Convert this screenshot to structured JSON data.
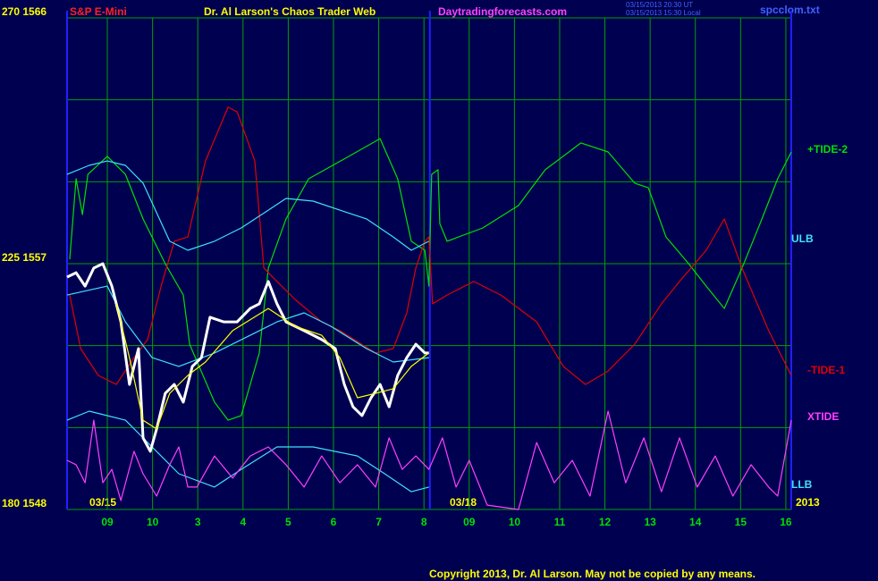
{
  "chart_data": {
    "type": "line",
    "instrument": "S&P E-Mini",
    "title": "Dr. Al Larson's Chaos Trader Web",
    "website": "Daytradingforecasts.com",
    "timestamps": [
      "03/15/2013 20:30 UT",
      "03/15/2013 15:30 Local"
    ],
    "file": "spcclom.txt",
    "copyright": "Copyright 2013, Dr. Al Larson. May not be copied by any means.",
    "date_labels": [
      "03/15",
      "03/18",
      "2013"
    ],
    "xlim": [
      0.11,
      16.12
    ],
    "xticks": [
      {
        "value": 1,
        "label": "09"
      },
      {
        "value": 2,
        "label": "10"
      },
      3,
      4,
      5,
      6,
      7,
      8,
      {
        "value": 9,
        "label": "09"
      },
      10,
      11,
      12,
      13,
      14,
      15,
      16
    ],
    "ylim": [
      1548,
      1566
    ],
    "yticks": [
      {
        "value": 1566,
        "label": "270 1566"
      },
      {
        "value": 1557,
        "label": "225 1557"
      },
      {
        "value": 1548,
        "label": "180 1548"
      }
    ],
    "ygrid": [
      1548,
      1551,
      1554,
      1557,
      1560,
      1563,
      1566
    ],
    "grid": true,
    "day_break": 8.13,
    "series": [
      {
        "name": "+TIDE-2",
        "color": "#00e000",
        "x": [
          0.17,
          0.31,
          0.45,
          0.57,
          1.0,
          1.4,
          1.79,
          2.28,
          2.68,
          2.82,
          3.37,
          3.67,
          3.96,
          4.36,
          4.56,
          4.95,
          5.45,
          6.34,
          7.03,
          7.42,
          7.72,
          8.02,
          8.11,
          8.17,
          8.31,
          8.35,
          8.51,
          9.3,
          10.09,
          10.68,
          11.47,
          12.07,
          12.66,
          12.96,
          13.35,
          13.85,
          14.24,
          14.64,
          15.03,
          15.43,
          15.82,
          16.12
        ],
        "values": [
          1557.16,
          1560.11,
          1558.8,
          1560.27,
          1560.93,
          1560.27,
          1558.64,
          1557.0,
          1555.85,
          1554.05,
          1551.93,
          1551.27,
          1551.44,
          1553.73,
          1556.84,
          1558.64,
          1560.11,
          1560.93,
          1561.58,
          1560.11,
          1557.82,
          1557.49,
          1556.18,
          1560.27,
          1560.44,
          1558.47,
          1557.82,
          1558.31,
          1559.13,
          1560.44,
          1561.42,
          1561.09,
          1559.95,
          1559.78,
          1557.98,
          1557.0,
          1556.18,
          1555.36,
          1556.84,
          1558.47,
          1560.11,
          1561.09
        ]
      },
      {
        "name": "-TIDE-1",
        "color": "#e00000",
        "x": [
          0.17,
          0.41,
          0.8,
          1.2,
          1.59,
          1.89,
          2.19,
          2.48,
          2.78,
          3.17,
          3.67,
          3.87,
          4.26,
          4.46,
          4.75,
          5.15,
          5.74,
          6.14,
          6.93,
          7.32,
          7.62,
          7.82,
          8.02,
          8.11,
          8.19,
          8.51,
          9.1,
          9.7,
          10.49,
          11.08,
          11.57,
          12.07,
          12.66,
          13.25,
          13.65,
          14.24,
          14.64,
          15.03,
          15.62,
          16.12
        ],
        "values": [
          1555.85,
          1553.89,
          1552.91,
          1552.58,
          1553.56,
          1554.22,
          1556.18,
          1557.82,
          1557.98,
          1560.76,
          1562.73,
          1562.56,
          1560.76,
          1556.84,
          1556.35,
          1555.69,
          1554.87,
          1554.55,
          1553.73,
          1553.89,
          1555.2,
          1556.84,
          1557.82,
          1557.98,
          1555.53,
          1555.85,
          1556.35,
          1555.85,
          1554.87,
          1553.24,
          1552.58,
          1553.07,
          1554.05,
          1555.53,
          1556.35,
          1557.49,
          1558.64,
          1556.84,
          1554.55,
          1552.91
        ]
      },
      {
        "name": "ULB",
        "color": "#40e0ff",
        "x": [
          0.11,
          0.6,
          1.0,
          1.4,
          1.79,
          2.38,
          2.78,
          3.37,
          3.96,
          4.56,
          4.95,
          5.55,
          6.14,
          6.73,
          7.32,
          7.72,
          8.11
        ],
        "values": [
          1560.27,
          1560.6,
          1560.76,
          1560.6,
          1559.95,
          1557.82,
          1557.49,
          1557.82,
          1558.31,
          1558.96,
          1559.39,
          1559.29,
          1558.96,
          1558.64,
          1557.98,
          1557.49,
          1557.82
        ]
      },
      {
        "color": "#40e0ff",
        "x": [
          0.11,
          1.0,
          1.4,
          1.99,
          2.58,
          3.37,
          4.16,
          4.75,
          5.35,
          5.94,
          6.73,
          7.32,
          8.11
        ],
        "values": [
          1555.85,
          1556.18,
          1554.87,
          1553.56,
          1553.24,
          1553.73,
          1554.38,
          1554.87,
          1555.2,
          1554.71,
          1553.89,
          1553.4,
          1553.56
        ]
      },
      {
        "name": "LLB",
        "color": "#40e0ff",
        "x": [
          0.11,
          0.6,
          1.4,
          1.99,
          2.58,
          3.37,
          3.96,
          4.75,
          5.55,
          6.53,
          7.13,
          7.72,
          8.11
        ],
        "values": [
          1551.27,
          1551.6,
          1551.27,
          1550.29,
          1549.31,
          1548.82,
          1549.47,
          1550.29,
          1550.29,
          1549.96,
          1549.31,
          1548.65,
          1548.82
        ]
      },
      {
        "name": "XTIDE",
        "color": "#ff40ff",
        "x": [
          0.11,
          0.31,
          0.51,
          0.7,
          0.9,
          1.1,
          1.3,
          1.59,
          1.79,
          2.09,
          2.38,
          2.58,
          2.78,
          2.98,
          3.37,
          3.77,
          4.16,
          4.56,
          4.95,
          5.35,
          5.74,
          6.14,
          6.53,
          6.93,
          7.23,
          7.52,
          7.82,
          8.11,
          8.41,
          8.71,
          9.0,
          9.4,
          10.09,
          10.49,
          10.88,
          11.28,
          11.67,
          12.07,
          12.46,
          12.86,
          13.25,
          13.65,
          14.04,
          14.44,
          14.83,
          15.23,
          15.62,
          15.82,
          16.12
        ],
        "values": [
          1549.8,
          1549.64,
          1548.98,
          1551.27,
          1548.98,
          1549.47,
          1548.33,
          1550.13,
          1549.31,
          1548.49,
          1549.64,
          1550.29,
          1548.82,
          1548.82,
          1549.96,
          1549.15,
          1549.96,
          1550.29,
          1549.64,
          1548.82,
          1549.96,
          1548.98,
          1549.64,
          1548.82,
          1550.62,
          1549.47,
          1549.96,
          1549.47,
          1550.62,
          1548.82,
          1549.8,
          1548.16,
          1548.0,
          1550.45,
          1548.98,
          1549.8,
          1548.49,
          1551.6,
          1548.98,
          1550.62,
          1548.65,
          1550.62,
          1548.82,
          1549.96,
          1548.49,
          1549.64,
          1548.82,
          1548.49,
          1551.27
        ]
      },
      {
        "color": "#ffffff",
        "x": [
          0.11,
          0.31,
          0.51,
          0.7,
          0.9,
          1.1,
          1.3,
          1.49,
          1.69,
          1.79,
          1.95,
          2.09,
          2.28,
          2.48,
          2.68,
          2.88,
          3.08,
          3.27,
          3.57,
          3.87,
          4.16,
          4.36,
          4.56,
          4.75,
          4.95,
          5.35,
          5.74,
          6.04,
          6.24,
          6.43,
          6.63,
          6.83,
          7.03,
          7.23,
          7.42,
          7.62,
          7.82,
          8.02,
          8.11
        ],
        "values": [
          1556.51,
          1556.67,
          1556.18,
          1556.84,
          1557.0,
          1556.18,
          1554.87,
          1552.58,
          1553.89,
          1550.62,
          1550.13,
          1550.95,
          1552.25,
          1552.58,
          1551.93,
          1553.24,
          1553.56,
          1555.04,
          1554.87,
          1554.87,
          1555.36,
          1555.53,
          1556.35,
          1555.53,
          1554.87,
          1554.55,
          1554.22,
          1553.89,
          1552.58,
          1551.76,
          1551.44,
          1552.09,
          1552.58,
          1551.76,
          1552.91,
          1553.56,
          1554.05,
          1553.73,
          1553.73
        ]
      },
      {
        "color": "#ffff00",
        "x": [
          1.2,
          1.49,
          1.79,
          2.09,
          2.38,
          2.78,
          3.17,
          3.77,
          4.56,
          5.15,
          5.74,
          6.14,
          6.53,
          6.93,
          7.32,
          7.72,
          8.11
        ],
        "values": [
          1555.53,
          1553.56,
          1551.27,
          1550.95,
          1552.25,
          1552.91,
          1553.4,
          1554.55,
          1555.36,
          1554.71,
          1554.38,
          1553.56,
          1552.09,
          1552.25,
          1552.42,
          1553.24,
          1553.73
        ]
      }
    ]
  }
}
